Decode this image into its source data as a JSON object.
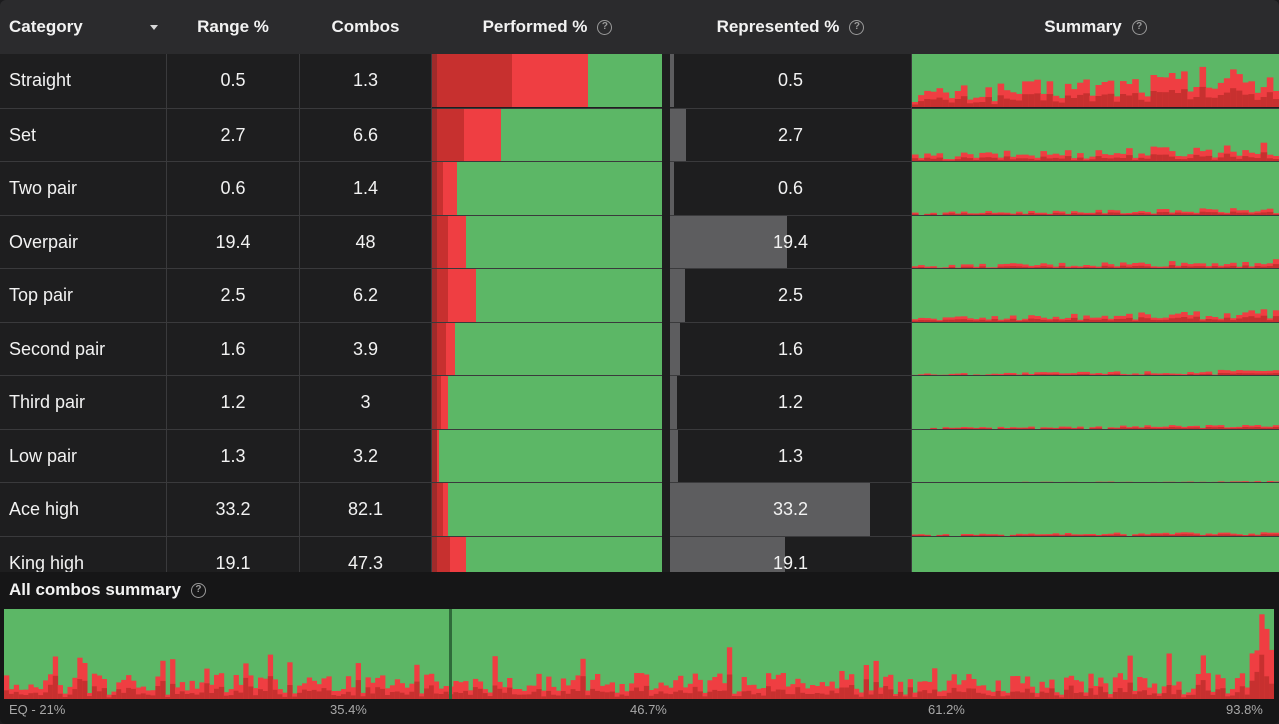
{
  "header": {
    "category_label": "Category",
    "range_label": "Range %",
    "combos_label": "Combos",
    "performed_label": "Performed %",
    "represented_label": "Represented %",
    "summary_label": "Summary"
  },
  "rows": [
    {
      "category": "Straight",
      "range": "0.5",
      "combos": "1.3",
      "represented": 0.5,
      "represented_text": "0.5",
      "performed": [
        0.02,
        0.33,
        0.33,
        0.32
      ]
    },
    {
      "category": "Set",
      "range": "2.7",
      "combos": "6.6",
      "represented": 2.7,
      "represented_text": "2.7",
      "performed": [
        0.02,
        0.12,
        0.16,
        0.7
      ]
    },
    {
      "category": "Two pair",
      "range": "0.6",
      "combos": "1.4",
      "represented": 0.6,
      "represented_text": "0.6",
      "performed": [
        0.02,
        0.03,
        0.06,
        0.89
      ]
    },
    {
      "category": "Overpair",
      "range": "19.4",
      "combos": "48",
      "represented": 19.4,
      "represented_text": "19.4",
      "performed": [
        0.02,
        0.05,
        0.08,
        0.85
      ]
    },
    {
      "category": "Top pair",
      "range": "2.5",
      "combos": "6.2",
      "represented": 2.5,
      "represented_text": "2.5",
      "performed": [
        0.02,
        0.05,
        0.12,
        0.81
      ]
    },
    {
      "category": "Second pair",
      "range": "1.6",
      "combos": "3.9",
      "represented": 1.6,
      "represented_text": "1.6",
      "performed": [
        0.02,
        0.04,
        0.04,
        0.9
      ]
    },
    {
      "category": "Third pair",
      "range": "1.2",
      "combos": "3",
      "represented": 1.2,
      "represented_text": "1.2",
      "performed": [
        0.02,
        0.02,
        0.03,
        0.93
      ]
    },
    {
      "category": "Low pair",
      "range": "1.3",
      "combos": "3.2",
      "represented": 1.3,
      "represented_text": "1.3",
      "performed": [
        0.02,
        0.0,
        0.01,
        0.97
      ]
    },
    {
      "category": "Ace high",
      "range": "33.2",
      "combos": "82.1",
      "represented": 33.2,
      "represented_text": "33.2",
      "performed": [
        0.02,
        0.03,
        0.02,
        0.93
      ]
    },
    {
      "category": "King high",
      "range": "19.1",
      "combos": "47.3",
      "represented": 19.1,
      "represented_text": "19.1",
      "performed": [
        0.02,
        0.06,
        0.07,
        0.85
      ]
    }
  ],
  "represented_scale_max": 40,
  "footer": {
    "title": "All combos summary",
    "axis_labels": [
      "EQ - 21%",
      "35.4%",
      "46.7%",
      "61.2%",
      "93.8%"
    ]
  },
  "colors": {
    "green": "#5cb766",
    "red": "#ef3e42",
    "dark_red": "#c7302f",
    "darkest": "#9e2b2b",
    "header_bg": "#2b2b2d",
    "row_bg": "#1e1e1f",
    "rep_bar": "#5d5d5f"
  },
  "icons": {
    "help": "question-circle-icon",
    "sort": "chevron-down-icon"
  }
}
